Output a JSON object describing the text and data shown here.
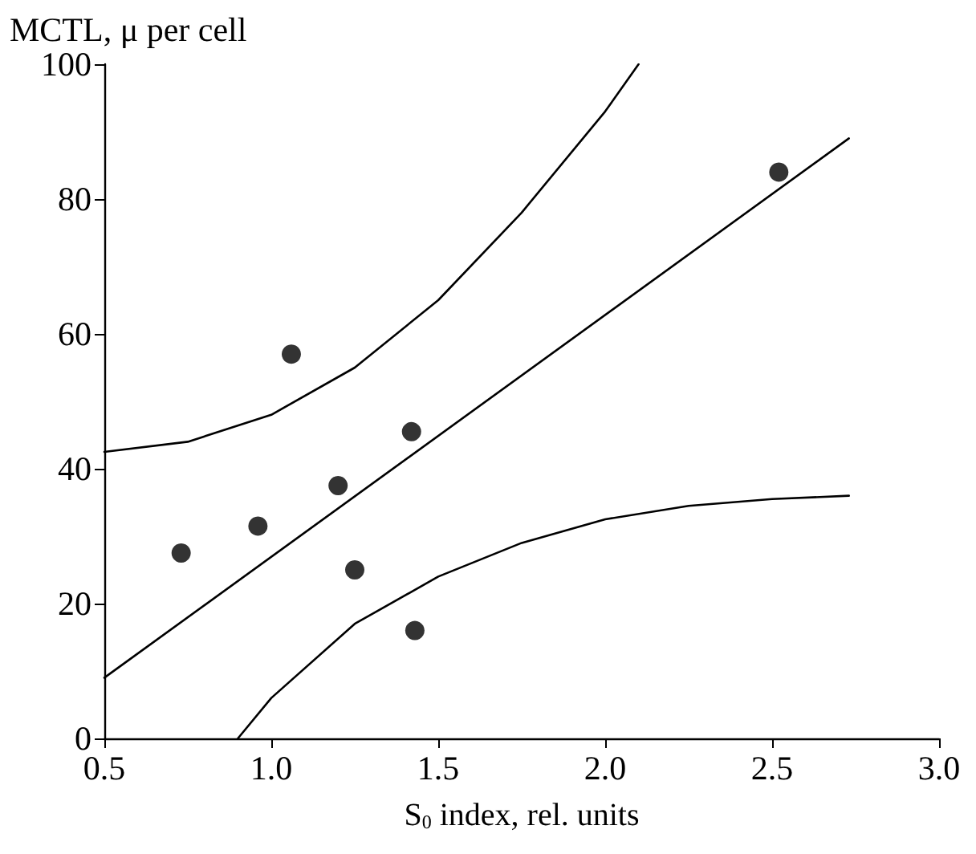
{
  "chart_data": {
    "type": "scatter",
    "ylabel": "MCTL, μ per cell",
    "xlabel": "S$_{0}$ index, rel. units",
    "xlim": [
      0.5,
      3.0
    ],
    "ylim": [
      0,
      100
    ],
    "xticks": [
      0.5,
      {
        "value": 1,
        "label": "1.0"
      },
      1.5,
      {
        "value": 2,
        "label": "2.0"
      },
      2.5,
      {
        "value": 3,
        "label": "3.0"
      }
    ],
    "yticks": [
      0,
      20,
      40,
      60,
      80,
      100
    ],
    "grid": false,
    "series": [
      {
        "marker": "circle",
        "color": "#000000",
        "x": [
          0.73,
          0.96,
          1.06,
          1.2,
          1.25,
          1.42,
          1.43,
          2.52
        ],
        "values": [
          27.5,
          31.5,
          57,
          37.5,
          25,
          45.5,
          16,
          84
        ]
      },
      {
        "type": "line",
        "marker": "none",
        "line_style": "solid",
        "color": "#000000",
        "x": [
          0.5,
          2.73
        ],
        "values": [
          9,
          89
        ]
      },
      {
        "type": "line",
        "marker": "none",
        "line_style": "solid",
        "color": "#000000",
        "x": [
          0.5,
          0.75,
          1.0,
          1.25,
          1.5,
          1.75,
          2.0,
          2.1
        ],
        "values": [
          42.5,
          44,
          48,
          55,
          65,
          78,
          93,
          100
        ]
      },
      {
        "type": "line",
        "marker": "none",
        "line_style": "solid",
        "color": "#000000",
        "x": [
          0.9,
          1.0,
          1.25,
          1.5,
          1.75,
          2.0,
          2.25,
          2.5,
          2.73
        ],
        "values": [
          0,
          6,
          17,
          24,
          29,
          32.5,
          34.5,
          35.5,
          36
        ]
      }
    ]
  }
}
